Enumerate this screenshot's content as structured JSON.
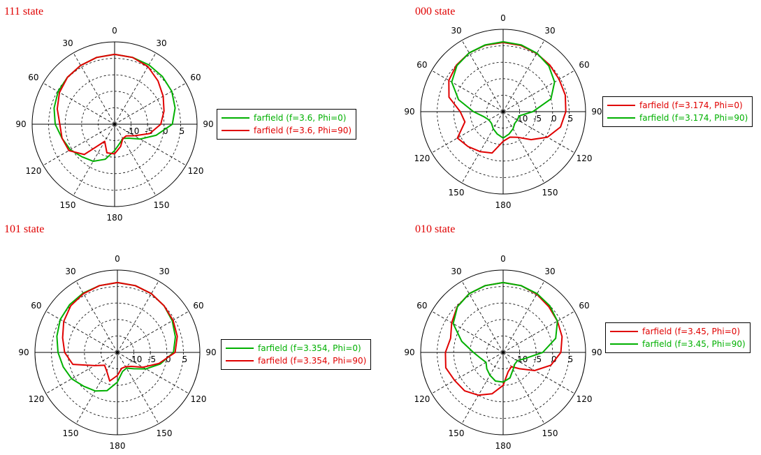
{
  "colors": {
    "red": "#e00000",
    "green": "#00b000"
  },
  "chart_data": [
    {
      "type": "polar-line",
      "title": "111 state",
      "r_ticks": [
        "-10",
        "-5",
        "0",
        "5"
      ],
      "angle_labels": [
        "0",
        "30",
        "60",
        "90",
        "120",
        "150",
        "180",
        "150",
        "120",
        "90",
        "60",
        "30"
      ],
      "series": [
        {
          "name": "farfield (f=3.6, Phi=0)",
          "color": "green",
          "theta": [
            -180,
            -165,
            -150,
            -135,
            -120,
            -105,
            -90,
            -75,
            -60,
            -45,
            -30,
            -15,
            0,
            15,
            30,
            45,
            60,
            75,
            90,
            105,
            120,
            135,
            150,
            165,
            180
          ],
          "values": [
            -7,
            -4,
            -2,
            -1,
            0.5,
            1.5,
            3,
            4,
            4.8,
            5.2,
            5.6,
            6.0,
            6.2,
            6.0,
            5.8,
            5.5,
            5.0,
            4.0,
            2.5,
            -2,
            -6,
            -9,
            -10,
            -9,
            -7
          ]
        },
        {
          "name": "farfield (f=3.6, Phi=90)",
          "color": "red",
          "theta": [
            -180,
            -165,
            -150,
            -135,
            -120,
            -105,
            -90,
            -75,
            -60,
            -45,
            -30,
            -15,
            0,
            15,
            30,
            45,
            60,
            75,
            90,
            105,
            120,
            135,
            150,
            165,
            180
          ],
          "values": [
            -6,
            -6,
            -9,
            -2,
            1,
            1.5,
            1.6,
            3,
            4.3,
            5.2,
            5.6,
            6.0,
            6.2,
            6.0,
            5.2,
            3.6,
            2.0,
            0.5,
            -1,
            -4,
            -8,
            -10,
            -10,
            -8,
            -6
          ]
        }
      ]
    },
    {
      "type": "polar-line",
      "title": "000 state",
      "r_ticks": [
        "-10",
        "-5",
        "0",
        "5"
      ],
      "angle_labels": [
        "0",
        "30",
        "60",
        "90",
        "120",
        "150",
        "180",
        "150",
        "120",
        "90",
        "60",
        "30"
      ],
      "series": [
        {
          "name": "farfield (f=3.174, Phi=0)",
          "color": "red",
          "theta": [
            -180,
            -165,
            -150,
            -135,
            -120,
            -105,
            -90,
            -75,
            -60,
            -45,
            -30,
            -15,
            0,
            15,
            30,
            45,
            60,
            75,
            90,
            105,
            120,
            135,
            150,
            165,
            180
          ],
          "values": [
            -6,
            -2,
            -1,
            0,
            1,
            -3,
            -2,
            2,
            4.0,
            5.0,
            5.6,
            5.9,
            6.0,
            5.8,
            5.4,
            5.0,
            4.6,
            4.5,
            4.0,
            3.0,
            0.5,
            -3,
            -6,
            -7,
            -6
          ]
        },
        {
          "name": "farfield (f=3.174, Phi=90)",
          "color": "green",
          "theta": [
            -180,
            -165,
            -150,
            -135,
            -120,
            -105,
            -90,
            -75,
            -60,
            -45,
            -30,
            -15,
            0,
            15,
            30,
            45,
            60,
            75,
            90,
            105,
            120,
            135,
            150,
            165,
            180
          ],
          "values": [
            -7,
            -8,
            -9,
            -10,
            -10,
            -9,
            -6,
            -1,
            3,
            4.8,
            5.6,
            6.0,
            6.2,
            6.0,
            5.5,
            4.6,
            3,
            0,
            -6,
            -10,
            -10,
            -10,
            -9,
            -8,
            -7
          ]
        }
      ]
    },
    {
      "type": "polar-line",
      "title": "101 state",
      "r_ticks": [
        "-10",
        "-5",
        "0",
        "5"
      ],
      "angle_labels": [
        "0",
        "30",
        "60",
        "90",
        "120",
        "150",
        "180",
        "150",
        "120",
        "90",
        "60",
        "30"
      ],
      "series": [
        {
          "name": "farfield (f=3.354, Phi=0)",
          "color": "green",
          "theta": [
            -180,
            -165,
            -150,
            -135,
            -120,
            -105,
            -90,
            -75,
            -60,
            -45,
            -30,
            -15,
            0,
            15,
            30,
            45,
            60,
            75,
            90,
            105,
            120,
            135,
            150,
            165,
            180
          ],
          "values": [
            -6,
            -3,
            -1.5,
            -0.5,
            1,
            2,
            3,
            4.0,
            5.0,
            5.5,
            5.8,
            6.0,
            6.2,
            6.0,
            5.6,
            5.0,
            4.2,
            3.2,
            2,
            -1.5,
            -5,
            -8,
            -9.5,
            -9,
            -6
          ]
        },
        {
          "name": "farfield (f=3.354, Phi=90)",
          "color": "red",
          "theta": [
            -180,
            -165,
            -150,
            -135,
            -120,
            -105,
            -90,
            -75,
            -60,
            -45,
            -30,
            -15,
            0,
            15,
            30,
            45,
            60,
            75,
            90,
            105,
            120,
            135,
            150,
            165,
            180
          ],
          "values": [
            -8,
            -6,
            -8.5,
            -9.5,
            -7,
            -1,
            1,
            2.2,
            3.8,
            5.0,
            5.6,
            6.0,
            6.2,
            6.0,
            5.6,
            5.0,
            4.5,
            3.8,
            2.5,
            -2,
            -6,
            -9,
            -10,
            -10,
            -8
          ]
        }
      ]
    },
    {
      "type": "polar-line",
      "title": "010 state",
      "r_ticks": [
        "-10",
        "-5",
        "0",
        "5"
      ],
      "angle_labels": [
        "0",
        "30",
        "60",
        "90",
        "120",
        "150",
        "180",
        "150",
        "120",
        "90",
        "60",
        "30"
      ],
      "series": [
        {
          "name": "farfield (f=3.45, Phi=0)",
          "color": "red",
          "theta": [
            -180,
            -165,
            -150,
            -135,
            -120,
            -105,
            -90,
            -75,
            -60,
            -45,
            -30,
            -15,
            0,
            15,
            30,
            45,
            60,
            75,
            90,
            105,
            120,
            135,
            150,
            165,
            180
          ],
          "values": [
            -5,
            -2,
            0,
            1.5,
            2,
            3,
            2.5,
            1.5,
            3,
            4.7,
            5.6,
            6.0,
            6.2,
            6.0,
            5.4,
            4.6,
            4.0,
            3.5,
            2.5,
            0,
            -4,
            -8,
            -10,
            -9,
            -5
          ]
        },
        {
          "name": "farfield (f=3.45, Phi=90)",
          "color": "green",
          "theta": [
            -180,
            -165,
            -150,
            -135,
            -120,
            -105,
            -90,
            -75,
            -60,
            -45,
            -30,
            -15,
            0,
            15,
            30,
            45,
            60,
            75,
            90,
            105,
            120,
            135,
            150,
            165,
            180
          ],
          "values": [
            -6,
            -6,
            -7,
            -8,
            -9,
            -8,
            -6,
            -2,
            2.5,
            4.6,
            5.6,
            6.0,
            6.2,
            6.0,
            5.6,
            5.0,
            4,
            1.5,
            -3,
            -8,
            -10,
            -10,
            -9,
            -7,
            -6
          ]
        }
      ]
    }
  ]
}
